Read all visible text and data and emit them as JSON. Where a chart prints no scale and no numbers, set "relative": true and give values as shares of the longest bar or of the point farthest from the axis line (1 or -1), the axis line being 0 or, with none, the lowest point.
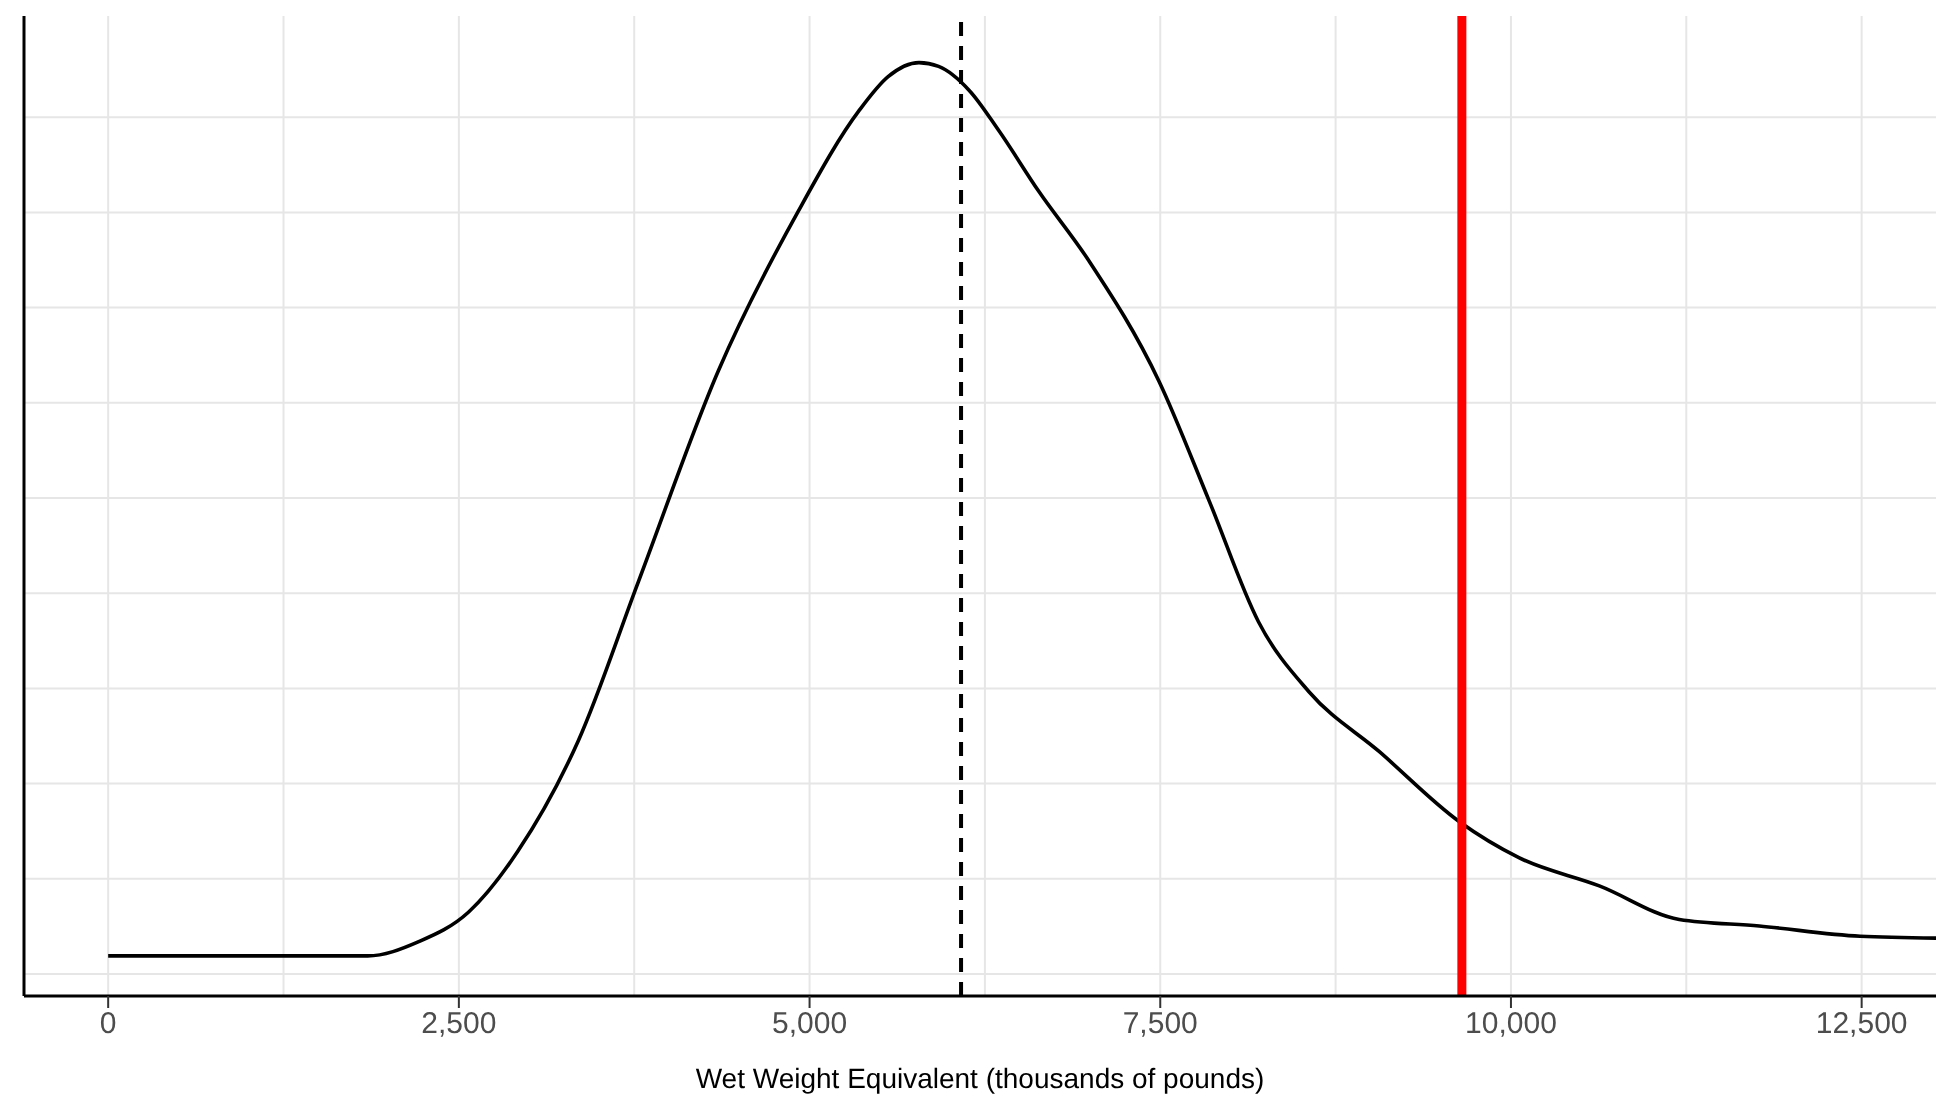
{
  "chart_data": {
    "type": "line",
    "relative": true,
    "xlabel": "Wet Weight Equivalent (thousands of pounds)",
    "xlim": [
      -600,
      13030
    ],
    "xticks": [
      0,
      {
        "value": 2500,
        "label": "2,500"
      },
      {
        "value": 5000,
        "label": "5,000"
      },
      {
        "value": 7500,
        "label": "7,500"
      },
      {
        "value": 10000,
        "label": "10,000"
      },
      {
        "value": 12500,
        "label": "12,500"
      }
    ],
    "grid": true,
    "line_style": "solid",
    "series": [
      {
        "color": "#000000",
        "x": [
          0,
          1850,
          2210,
          2570,
          2920,
          3350,
          3780,
          4350,
          4920,
          5350,
          5560,
          5780,
          5920,
          6140,
          6350,
          6630,
          6990,
          7490,
          7850,
          8200,
          8560,
          9060,
          9630,
          10060,
          10630,
          11200,
          11770,
          12490,
          13030
        ],
        "values": [
          0.043,
          0.043,
          0.058,
          0.09,
          0.155,
          0.273,
          0.444,
          0.67,
          0.841,
          0.948,
          0.985,
          1.0,
          0.996,
          0.97,
          0.927,
          0.863,
          0.788,
          0.659,
          0.53,
          0.401,
          0.326,
          0.262,
          0.187,
          0.148,
          0.118,
          0.082,
          0.075,
          0.064,
          0.062
        ]
      }
    ],
    "ref_lines": [
      {
        "axis": "x",
        "value": 6080,
        "color": "#000000",
        "line_style": "dashed"
      },
      {
        "axis": "x",
        "value": 9650,
        "color": "#ff0000",
        "line_style": "solid"
      }
    ]
  }
}
